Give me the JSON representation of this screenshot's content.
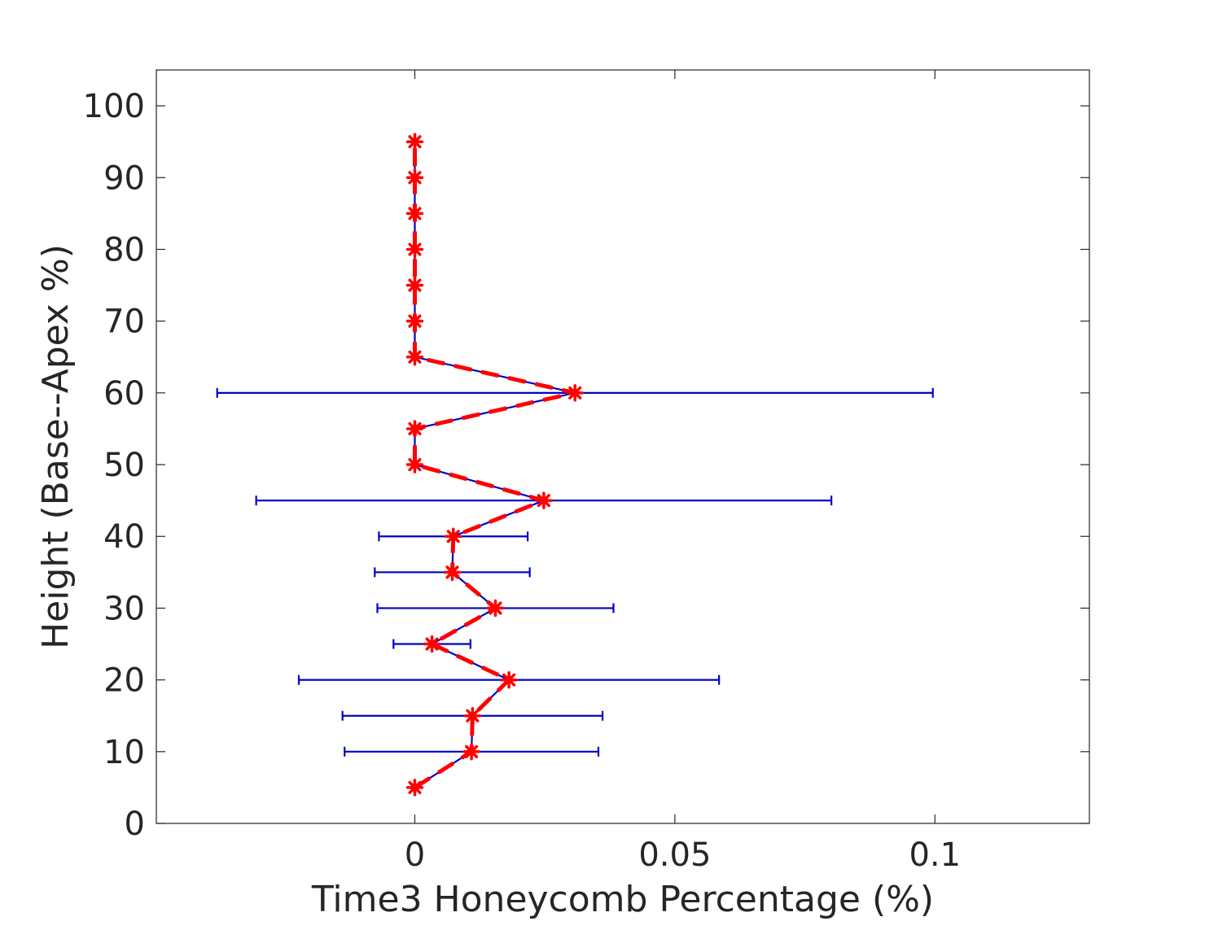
{
  "chart_data": {
    "type": "line",
    "orientation": "horizontal-profile",
    "title": "",
    "xlabel": "Time3 Honeycomb Percentage (%)",
    "ylabel": "Height (Base--Apex %)",
    "xlim": [
      -0.0497,
      0.1297
    ],
    "ylim": [
      0,
      105
    ],
    "xticks": [
      0,
      0.05,
      0.1
    ],
    "xtick_labels": [
      "0",
      "0.05",
      "0.1"
    ],
    "yticks": [
      0,
      10,
      20,
      30,
      40,
      50,
      60,
      70,
      80,
      90,
      100
    ],
    "ytick_labels": [
      "0",
      "10",
      "20",
      "30",
      "40",
      "50",
      "60",
      "70",
      "80",
      "90",
      "100"
    ],
    "grid": false,
    "legend": "none",
    "colors": {
      "errorbar": "#0000cc",
      "mean_line": "#ff0000",
      "marker": "#ff0000",
      "axes": "#262626"
    },
    "series": [
      {
        "values": [
          {
            "y": 5,
            "x": 0.0,
            "xlow": 0.0,
            "xhigh": 0.0
          },
          {
            "y": 10,
            "x": 0.0109,
            "xlow": -0.0135,
            "xhigh": 0.0353
          },
          {
            "y": 15,
            "x": 0.0111,
            "xlow": -0.0139,
            "xhigh": 0.0361
          },
          {
            "y": 20,
            "x": 0.0181,
            "xlow": -0.0223,
            "xhigh": 0.0585
          },
          {
            "y": 25,
            "x": 0.0033,
            "xlow": -0.0041,
            "xhigh": 0.0107
          },
          {
            "y": 30,
            "x": 0.0155,
            "xlow": -0.0072,
            "xhigh": 0.0382
          },
          {
            "y": 35,
            "x": 0.0072,
            "xlow": -0.0077,
            "xhigh": 0.0221
          },
          {
            "y": 40,
            "x": 0.0074,
            "xlow": -0.0069,
            "xhigh": 0.0217
          },
          {
            "y": 45,
            "x": 0.0248,
            "xlow": -0.0305,
            "xhigh": 0.0801
          },
          {
            "y": 50,
            "x": 0.0,
            "xlow": 0.0,
            "xhigh": 0.0
          },
          {
            "y": 55,
            "x": 0.0,
            "xlow": 0.0,
            "xhigh": 0.0
          },
          {
            "y": 60,
            "x": 0.0308,
            "xlow": -0.038,
            "xhigh": 0.0996
          },
          {
            "y": 65,
            "x": 0.0,
            "xlow": 0.0,
            "xhigh": 0.0
          },
          {
            "y": 70,
            "x": 0.0,
            "xlow": 0.0,
            "xhigh": 0.0
          },
          {
            "y": 75,
            "x": 0.0,
            "xlow": 0.0,
            "xhigh": 0.0
          },
          {
            "y": 80,
            "x": 0.0,
            "xlow": 0.0,
            "xhigh": 0.0
          },
          {
            "y": 85,
            "x": 0.0,
            "xlow": 0.0,
            "xhigh": 0.0
          },
          {
            "y": 90,
            "x": 0.0,
            "xlow": 0.0,
            "xhigh": 0.0
          },
          {
            "y": 95,
            "x": 0.0,
            "xlow": 0.0,
            "xhigh": 0.0
          }
        ]
      }
    ]
  }
}
